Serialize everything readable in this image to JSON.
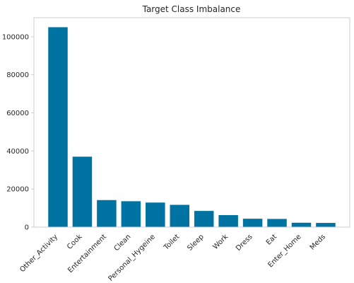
{
  "chart_data": {
    "type": "bar",
    "title": "Target Class Imbalance",
    "xlabel": "",
    "ylabel": "",
    "categories": [
      "Other_Activity",
      "Cook",
      "Entertainment",
      "Clean",
      "Personal_Hygeine",
      "Toilet",
      "Sleep",
      "Work",
      "Dress",
      "Eat",
      "Enter_Home",
      "Meds"
    ],
    "values": [
      105000,
      37000,
      14200,
      13600,
      12900,
      11700,
      8500,
      6300,
      4400,
      4300,
      2300,
      2200
    ],
    "ylim": [
      0,
      110000
    ],
    "yticks": [
      0,
      20000,
      40000,
      60000,
      80000,
      100000
    ],
    "ytick_labels": [
      "0",
      "20000",
      "40000",
      "60000",
      "80000",
      "100000"
    ],
    "grid": false,
    "colors": {
      "bar": "#0173a2",
      "axes_edge": "#cccccc",
      "text": "#262626"
    }
  }
}
